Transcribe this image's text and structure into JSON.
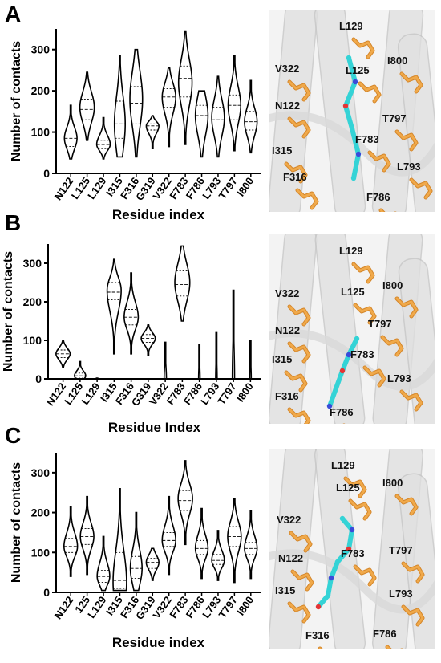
{
  "panels": [
    {
      "letter": "A",
      "structure_labels": [
        "L129",
        "V322",
        "L125",
        "I800",
        "N122",
        "T797",
        "I315",
        "F783",
        "L793",
        "F316",
        "F786"
      ],
      "chart_data": {
        "type": "violin",
        "xlabel": "Residue index",
        "ylabel": "Number of contacts",
        "ylim": [
          0,
          350
        ],
        "yticks": [
          0,
          100,
          200,
          300
        ],
        "categories": [
          "N122",
          "L125",
          "L129",
          "I315",
          "F316",
          "G319",
          "V322",
          "F783",
          "F786",
          "L793",
          "T797",
          "I800"
        ],
        "series": [
          {
            "violins": [
              {
                "min": 35,
                "max": 165,
                "q1": 65,
                "median": 85,
                "q3": 100,
                "peak": 85,
                "width": 0.7
              },
              {
                "min": 80,
                "max": 245,
                "q1": 130,
                "median": 155,
                "q3": 180,
                "peak": 160,
                "width": 0.8
              },
              {
                "min": 35,
                "max": 135,
                "q1": 60,
                "median": 70,
                "q3": 80,
                "peak": 70,
                "width": 0.75
              },
              {
                "min": 40,
                "max": 285,
                "q1": 85,
                "median": 120,
                "q3": 175,
                "peak": 120,
                "width": 0.6
              },
              {
                "min": 40,
                "max": 300,
                "q1": 120,
                "median": 170,
                "q3": 210,
                "peak": 180,
                "width": 0.7
              },
              {
                "min": 60,
                "max": 140,
                "q1": 105,
                "median": 115,
                "q3": 120,
                "peak": 115,
                "width": 0.7
              },
              {
                "min": 65,
                "max": 255,
                "q1": 160,
                "median": 185,
                "q3": 205,
                "peak": 185,
                "width": 0.75
              },
              {
                "min": 70,
                "max": 345,
                "q1": 185,
                "median": 230,
                "q3": 260,
                "peak": 220,
                "width": 0.75
              },
              {
                "min": 40,
                "max": 200,
                "q1": 100,
                "median": 140,
                "q3": 165,
                "peak": 140,
                "width": 0.7
              },
              {
                "min": 40,
                "max": 235,
                "q1": 100,
                "median": 130,
                "q3": 160,
                "peak": 135,
                "width": 0.7
              },
              {
                "min": 55,
                "max": 285,
                "q1": 130,
                "median": 165,
                "q3": 190,
                "peak": 165,
                "width": 0.7
              },
              {
                "min": 50,
                "max": 225,
                "q1": 105,
                "median": 125,
                "q3": 150,
                "peak": 125,
                "width": 0.7
              }
            ]
          }
        ]
      }
    },
    {
      "letter": "B",
      "structure_labels": [
        "L129",
        "V322",
        "L125",
        "I800",
        "N122",
        "T797",
        "F783",
        "I315",
        "L793",
        "F316",
        "F786"
      ],
      "chart_data": {
        "type": "violin",
        "xlabel": "Residue Index",
        "ylabel": "Number of contacts",
        "ylim": [
          0,
          350
        ],
        "yticks": [
          0,
          100,
          200,
          300
        ],
        "categories": [
          "N122",
          "L125",
          "L129",
          "I315",
          "F316",
          "G319",
          "V322",
          "F783",
          "F786",
          "L793",
          "T797",
          "I800"
        ],
        "series": [
          {
            "violins": [
              {
                "min": 30,
                "max": 100,
                "q1": 55,
                "median": 65,
                "q3": 75,
                "peak": 65,
                "width": 0.75
              },
              {
                "min": 0,
                "max": 45,
                "q1": 2,
                "median": 8,
                "q3": 15,
                "peak": 8,
                "width": 0.6
              },
              {
                "min": 0,
                "max": 2,
                "q1": 0,
                "median": 0,
                "q3": 0,
                "peak": 0,
                "width": 0.2
              },
              {
                "min": 65,
                "max": 310,
                "q1": 205,
                "median": 225,
                "q3": 250,
                "peak": 230,
                "width": 0.75
              },
              {
                "min": 65,
                "max": 275,
                "q1": 140,
                "median": 160,
                "q3": 180,
                "peak": 160,
                "width": 0.75
              },
              {
                "min": 60,
                "max": 140,
                "q1": 95,
                "median": 105,
                "q3": 115,
                "peak": 105,
                "width": 0.75
              },
              {
                "min": 0,
                "max": 95,
                "q1": 0,
                "median": 0,
                "q3": 0,
                "peak": 0,
                "width": 0.12
              },
              {
                "min": 150,
                "max": 345,
                "q1": 215,
                "median": 245,
                "q3": 280,
                "peak": 250,
                "width": 0.8
              },
              {
                "min": 0,
                "max": 90,
                "q1": 0,
                "median": 0,
                "q3": 0,
                "peak": 0,
                "width": 0.08
              },
              {
                "min": 0,
                "max": 120,
                "q1": 0,
                "median": 0,
                "q3": 0,
                "peak": 0,
                "width": 0.08
              },
              {
                "min": 0,
                "max": 230,
                "q1": 0,
                "median": 0,
                "q3": 0,
                "peak": 0,
                "width": 0.12
              },
              {
                "min": 0,
                "max": 100,
                "q1": 0,
                "median": 0,
                "q3": 0,
                "peak": 0,
                "width": 0.08
              }
            ]
          }
        ]
      }
    },
    {
      "letter": "C",
      "structure_labels": [
        "L129",
        "L125",
        "I800",
        "V322",
        "N122",
        "T797",
        "F783",
        "I315",
        "L793",
        "F316",
        "F786"
      ],
      "chart_data": {
        "type": "violin",
        "xlabel": "Residue index",
        "ylabel": "Number of contacts",
        "ylim": [
          0,
          350
        ],
        "yticks": [
          0,
          100,
          200,
          300
        ],
        "categories": [
          "N122",
          "125",
          "L129",
          "I315",
          "F316",
          "G319",
          "V322",
          "F783",
          "F786",
          "L793",
          "T797",
          "I800"
        ],
        "series": [
          {
            "violins": [
              {
                "min": 40,
                "max": 215,
                "q1": 100,
                "median": 115,
                "q3": 135,
                "peak": 115,
                "width": 0.75
              },
              {
                "min": 45,
                "max": 240,
                "q1": 120,
                "median": 140,
                "q3": 160,
                "peak": 140,
                "width": 0.75
              },
              {
                "min": 5,
                "max": 140,
                "q1": 25,
                "median": 40,
                "q3": 55,
                "peak": 40,
                "width": 0.7
              },
              {
                "min": 5,
                "max": 260,
                "q1": 10,
                "median": 30,
                "q3": 100,
                "peak": 25,
                "width": 0.75
              },
              {
                "min": 5,
                "max": 200,
                "q1": 35,
                "median": 60,
                "q3": 90,
                "peak": 60,
                "width": 0.65
              },
              {
                "min": 30,
                "max": 110,
                "q1": 60,
                "median": 75,
                "q3": 85,
                "peak": 75,
                "width": 0.7
              },
              {
                "min": 45,
                "max": 240,
                "q1": 115,
                "median": 130,
                "q3": 150,
                "peak": 130,
                "width": 0.75
              },
              {
                "min": 120,
                "max": 330,
                "q1": 205,
                "median": 230,
                "q3": 255,
                "peak": 235,
                "width": 0.8
              },
              {
                "min": 35,
                "max": 210,
                "q1": 95,
                "median": 110,
                "q3": 130,
                "peak": 110,
                "width": 0.7
              },
              {
                "min": 30,
                "max": 155,
                "q1": 70,
                "median": 80,
                "q3": 95,
                "peak": 80,
                "width": 0.7
              },
              {
                "min": 25,
                "max": 235,
                "q1": 115,
                "median": 140,
                "q3": 165,
                "peak": 140,
                "width": 0.75
              },
              {
                "min": 35,
                "max": 205,
                "q1": 95,
                "median": 110,
                "q3": 125,
                "peak": 110,
                "width": 0.7
              }
            ]
          }
        ]
      }
    }
  ]
}
